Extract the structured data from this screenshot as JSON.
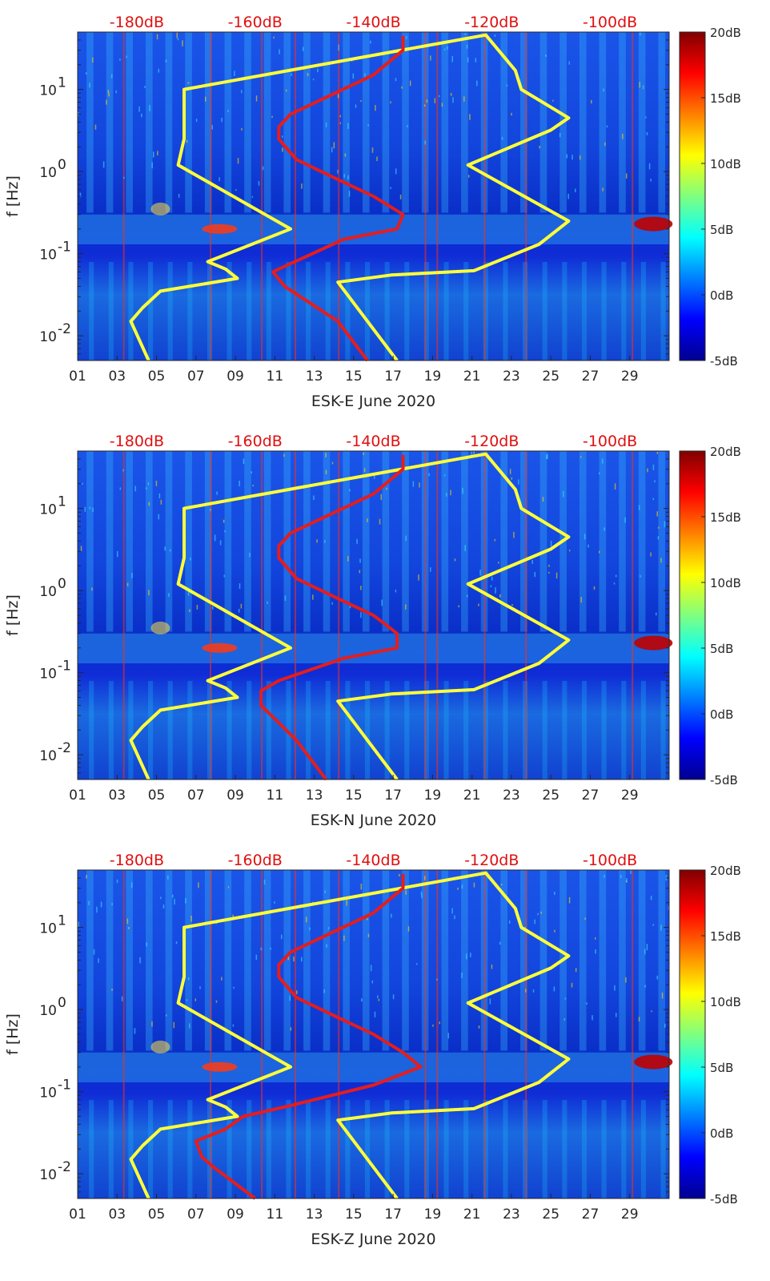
{
  "colors": {
    "lnm_curve": "#ffff3a",
    "hnm_curve": "#e51d1d",
    "db_axis_text": "#e01010",
    "colormap": "jet"
  },
  "chart_data": [
    {
      "type": "heatmap",
      "xlabel": "ESK-E June 2020",
      "ylabel": "f [Hz]",
      "x_ticks": [
        "01",
        "03",
        "05",
        "07",
        "09",
        "11",
        "13",
        "15",
        "17",
        "19",
        "21",
        "23",
        "25",
        "27",
        "29"
      ],
      "x_range_days": [
        1,
        31
      ],
      "y_scale": "log",
      "y_ticks": [
        {
          "v": 0.01,
          "base": "10",
          "exp": "-2"
        },
        {
          "v": 0.1,
          "base": "10",
          "exp": "-1"
        },
        {
          "v": 1,
          "base": "10",
          "exp": "0"
        },
        {
          "v": 10,
          "base": "10",
          "exp": "1"
        }
      ],
      "y_range_hz": [
        0.005,
        50
      ],
      "top_axis_ticks": [
        "-180dB",
        "-160dB",
        "-140dB",
        "-120dB",
        "-100dB"
      ],
      "top_axis_range_db": [
        -190,
        -90
      ],
      "colorbar_ticks": [
        "20dB",
        "15dB",
        "10dB",
        "5dB",
        "0dB",
        "-5dB"
      ],
      "colorbar_range_db": [
        -5,
        20
      ],
      "series": [
        {
          "key": "LNM",
          "points": [
            [
              -178,
              0.005
            ],
            [
              -181,
              0.015
            ],
            [
              -179,
              0.022
            ],
            [
              -176,
              0.035
            ],
            [
              -163,
              0.05
            ],
            [
              -165,
              0.065
            ],
            [
              -168,
              0.08
            ],
            [
              -154,
              0.2
            ],
            [
              -173,
              1.2
            ],
            [
              -172,
              2.5
            ],
            [
              -172,
              10
            ],
            [
              -121,
              46
            ],
            [
              -116,
              17
            ],
            [
              -115,
              10
            ],
            [
              -107,
              4.5
            ],
            [
              -110,
              3.2
            ],
            [
              -124,
              1.2
            ],
            [
              -107,
              0.25
            ],
            [
              -112,
              0.13
            ],
            [
              -123,
              0.062
            ],
            [
              -137,
              0.055
            ],
            [
              -146,
              0.045
            ],
            [
              -136,
              0.005
            ]
          ]
        },
        {
          "key": "HNM",
          "points": [
            [
              -141,
              0.005
            ],
            [
              -146,
              0.015
            ],
            [
              -155,
              0.04
            ],
            [
              -157,
              0.06
            ],
            [
              -155,
              0.07
            ],
            [
              -145,
              0.15
            ],
            [
              -136,
              0.2
            ],
            [
              -135,
              0.3
            ],
            [
              -140,
              0.5
            ],
            [
              -146,
              0.8
            ],
            [
              -153,
              1.4
            ],
            [
              -156,
              2.5
            ],
            [
              -156,
              3.5
            ],
            [
              -154,
              5
            ],
            [
              -148,
              8
            ],
            [
              -140,
              15
            ],
            [
              -135,
              30
            ],
            [
              -135,
              45
            ]
          ]
        }
      ]
    },
    {
      "type": "heatmap",
      "xlabel": "ESK-N June 2020",
      "ylabel": "f [Hz]",
      "x_ticks": [
        "01",
        "03",
        "05",
        "07",
        "09",
        "11",
        "13",
        "15",
        "17",
        "19",
        "21",
        "23",
        "25",
        "27",
        "29"
      ],
      "x_range_days": [
        1,
        31
      ],
      "y_scale": "log",
      "y_ticks": [
        {
          "v": 0.01,
          "base": "10",
          "exp": "-2"
        },
        {
          "v": 0.1,
          "base": "10",
          "exp": "-1"
        },
        {
          "v": 1,
          "base": "10",
          "exp": "0"
        },
        {
          "v": 10,
          "base": "10",
          "exp": "1"
        }
      ],
      "y_range_hz": [
        0.005,
        50
      ],
      "top_axis_ticks": [
        "-180dB",
        "-160dB",
        "-140dB",
        "-120dB",
        "-100dB"
      ],
      "top_axis_range_db": [
        -190,
        -90
      ],
      "colorbar_ticks": [
        "20dB",
        "15dB",
        "10dB",
        "5dB",
        "0dB",
        "-5dB"
      ],
      "colorbar_range_db": [
        -5,
        20
      ],
      "series": [
        {
          "key": "LNM",
          "points": [
            [
              -178,
              0.005
            ],
            [
              -181,
              0.015
            ],
            [
              -179,
              0.022
            ],
            [
              -176,
              0.035
            ],
            [
              -163,
              0.05
            ],
            [
              -165,
              0.065
            ],
            [
              -168,
              0.08
            ],
            [
              -154,
              0.2
            ],
            [
              -173,
              1.2
            ],
            [
              -172,
              2.5
            ],
            [
              -172,
              10
            ],
            [
              -121,
              46
            ],
            [
              -116,
              17
            ],
            [
              -115,
              10
            ],
            [
              -107,
              4.5
            ],
            [
              -110,
              3.2
            ],
            [
              -124,
              1.2
            ],
            [
              -107,
              0.25
            ],
            [
              -112,
              0.13
            ],
            [
              -123,
              0.062
            ],
            [
              -137,
              0.055
            ],
            [
              -146,
              0.045
            ],
            [
              -136,
              0.005
            ]
          ]
        },
        {
          "key": "HNM",
          "points": [
            [
              -148,
              0.005
            ],
            [
              -153,
              0.015
            ],
            [
              -159,
              0.04
            ],
            [
              -159,
              0.06
            ],
            [
              -156,
              0.08
            ],
            [
              -145,
              0.15
            ],
            [
              -136,
              0.2
            ],
            [
              -136,
              0.3
            ],
            [
              -140,
              0.5
            ],
            [
              -146,
              0.8
            ],
            [
              -153,
              1.4
            ],
            [
              -156,
              2.5
            ],
            [
              -156,
              3.5
            ],
            [
              -154,
              5
            ],
            [
              -148,
              8
            ],
            [
              -140,
              15
            ],
            [
              -135,
              30
            ],
            [
              -135,
              45
            ]
          ]
        }
      ]
    },
    {
      "type": "heatmap",
      "xlabel": "ESK-Z June 2020",
      "ylabel": "f [Hz]",
      "x_ticks": [
        "01",
        "03",
        "05",
        "07",
        "09",
        "11",
        "13",
        "15",
        "17",
        "19",
        "21",
        "23",
        "25",
        "27",
        "29"
      ],
      "x_range_days": [
        1,
        31
      ],
      "y_scale": "log",
      "y_ticks": [
        {
          "v": 0.01,
          "base": "10",
          "exp": "-2"
        },
        {
          "v": 0.1,
          "base": "10",
          "exp": "-1"
        },
        {
          "v": 1,
          "base": "10",
          "exp": "0"
        },
        {
          "v": 10,
          "base": "10",
          "exp": "1"
        }
      ],
      "y_range_hz": [
        0.005,
        50
      ],
      "top_axis_ticks": [
        "-180dB",
        "-160dB",
        "-140dB",
        "-120dB",
        "-100dB"
      ],
      "top_axis_range_db": [
        -190,
        -90
      ],
      "colorbar_ticks": [
        "20dB",
        "15dB",
        "10dB",
        "5dB",
        "0dB",
        "-5dB"
      ],
      "colorbar_range_db": [
        -5,
        20
      ],
      "series": [
        {
          "key": "LNM",
          "points": [
            [
              -178,
              0.005
            ],
            [
              -181,
              0.015
            ],
            [
              -179,
              0.022
            ],
            [
              -176,
              0.035
            ],
            [
              -163,
              0.05
            ],
            [
              -165,
              0.065
            ],
            [
              -168,
              0.08
            ],
            [
              -154,
              0.2
            ],
            [
              -173,
              1.2
            ],
            [
              -172,
              2.5
            ],
            [
              -172,
              10
            ],
            [
              -121,
              46
            ],
            [
              -116,
              17
            ],
            [
              -115,
              10
            ],
            [
              -107,
              4.5
            ],
            [
              -110,
              3.2
            ],
            [
              -124,
              1.2
            ],
            [
              -107,
              0.25
            ],
            [
              -112,
              0.13
            ],
            [
              -123,
              0.062
            ],
            [
              -137,
              0.055
            ],
            [
              -146,
              0.045
            ],
            [
              -136,
              0.005
            ]
          ]
        },
        {
          "key": "HNM",
          "points": [
            [
              -160,
              0.005
            ],
            [
              -167,
              0.012
            ],
            [
              -169,
              0.016
            ],
            [
              -170,
              0.025
            ],
            [
              -165,
              0.035
            ],
            [
              -162,
              0.05
            ],
            [
              -155,
              0.065
            ],
            [
              -140,
              0.12
            ],
            [
              -132,
              0.2
            ],
            [
              -135,
              0.3
            ],
            [
              -140,
              0.5
            ],
            [
              -146,
              0.8
            ],
            [
              -153,
              1.4
            ],
            [
              -156,
              2.5
            ],
            [
              -156,
              3.5
            ],
            [
              -154,
              5
            ],
            [
              -148,
              8
            ],
            [
              -140,
              15
            ],
            [
              -135,
              30
            ],
            [
              -135,
              45
            ]
          ]
        }
      ]
    }
  ]
}
